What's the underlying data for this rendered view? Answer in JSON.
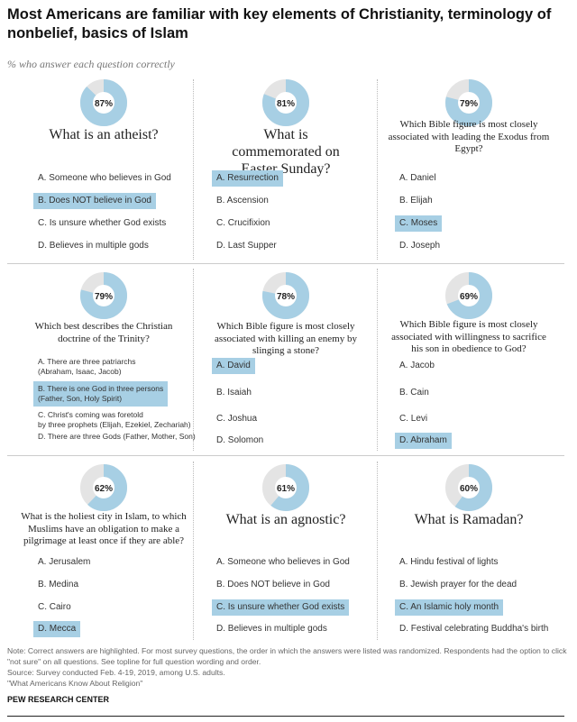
{
  "title": "Most Americans are familiar with key elements of Christianity, terminology of nonbelief, basics of Islam",
  "subtitle": "% who answer each question correctly",
  "colors": {
    "correct": "#a7cfe4",
    "remainder": "#e4e4e4",
    "highlight": "#a7cfe4"
  },
  "chart_data": {
    "type": "pie",
    "variant": "donut",
    "items": [
      {
        "label": "87%",
        "value": 87,
        "question": "What is an atheist?",
        "answers": [
          "A. Someone who believes in God",
          "B. Does NOT believe in God",
          "C. Is unsure whether God exists",
          "D. Believes in multiple gods"
        ],
        "correct": 1
      },
      {
        "label": "81%",
        "value": 81,
        "question": "What is commemorated on Easter Sunday?",
        "answers": [
          "A. Resurrection",
          "B. Ascension",
          "C. Crucifixion",
          "D. Last Supper"
        ],
        "correct": 0
      },
      {
        "label": "79%",
        "value": 79,
        "question": "Which Bible figure is most closely associated with leading the Exodus from Egypt?",
        "answers": [
          "A. Daniel",
          "B. Elijah",
          "C. Moses",
          "D. Joseph"
        ],
        "correct": 2
      },
      {
        "label": "79%",
        "value": 79,
        "question": "Which best describes the Christian doctrine of the Trinity?",
        "answers": [
          "A. There are three patriarchs\n(Abraham, Isaac, Jacob)",
          "B. There is one God in three persons\n(Father, Son, Holy Spirit)",
          "C. Christ's coming was foretold\nby three prophets (Elijah, Ezekiel, Zechariah)",
          "D. There are three Gods (Father, Mother, Son)"
        ],
        "correct": 1
      },
      {
        "label": "78%",
        "value": 78,
        "question": "Which Bible figure is most closely associated with killing an enemy by slinging a stone?",
        "answers": [
          "A. David",
          "B. Isaiah",
          "C. Joshua",
          "D. Solomon"
        ],
        "correct": 0
      },
      {
        "label": "69%",
        "value": 69,
        "question": "Which Bible figure is most closely associated with willingness to sacrifice his son in obedience to God?",
        "answers": [
          "A. Jacob",
          "B. Cain",
          "C. Levi",
          "D. Abraham"
        ],
        "correct": 3
      },
      {
        "label": "62%",
        "value": 62,
        "question": "What is the holiest city in Islam, to which Muslims have an obligation to make a pilgrimage at least once if they are able?",
        "answers": [
          "A. Jerusalem",
          "B. Medina",
          "C. Cairo",
          "D. Mecca"
        ],
        "correct": 3
      },
      {
        "label": "61%",
        "value": 61,
        "question": "What is an agnostic?",
        "answers": [
          "A. Someone who believes in God",
          "B. Does NOT believe in God",
          "C. Is unsure whether God exists",
          "D. Believes in multiple gods"
        ],
        "correct": 2
      },
      {
        "label": "60%",
        "value": 60,
        "question": "What is Ramadan?",
        "answers": [
          "A. Hindu festival of lights",
          "B. Jewish prayer for the dead",
          "C. An Islamic holy month",
          "D. Festival celebrating Buddha's birth"
        ],
        "correct": 2
      }
    ]
  },
  "footer": {
    "note": "Note: Correct answers are highlighted. For most survey questions, the order in which the answers were listed was randomized. Respondents had the option to click \"not sure\" on all questions. See topline for full question wording and order.",
    "source": "Source: Survey conducted Feb. 4-19, 2019, among U.S. adults.",
    "report": "\"What Americans Know About Religion\"",
    "logo": "PEW RESEARCH CENTER"
  }
}
